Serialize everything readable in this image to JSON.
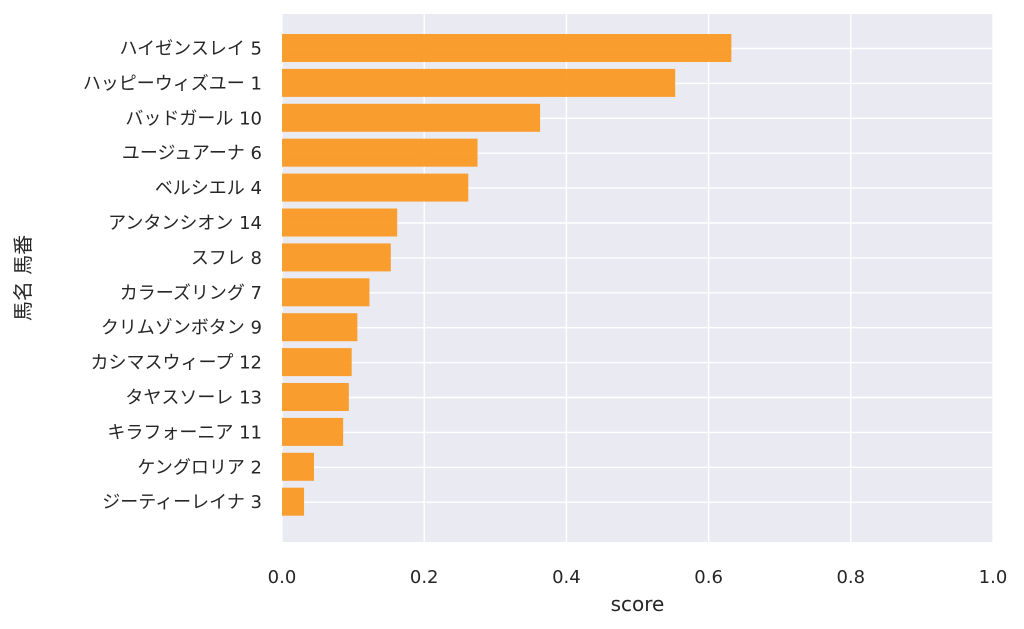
{
  "chart_data": {
    "type": "bar",
    "orientation": "horizontal",
    "categories": [
      "ハイゼンスレイ 5",
      "ハッピーウィズユー 1",
      "バッドガール 10",
      "ユージュアーナ 6",
      "ベルシエル 4",
      "アンタンシオン 14",
      "スフレ 8",
      "カラーズリング 7",
      "クリムゾンボタン 9",
      "カシマスウィープ 12",
      "タヤスソーレ 13",
      "キラフォーニア 11",
      "ケングロリア 2",
      "ジーティーレイナ 3"
    ],
    "values": [
      0.632,
      0.553,
      0.363,
      0.275,
      0.262,
      0.162,
      0.153,
      0.123,
      0.106,
      0.098,
      0.094,
      0.086,
      0.045,
      0.031
    ],
    "xlabel": "score",
    "ylabel": "馬名 馬番",
    "xlim": [
      0,
      1.0
    ],
    "xticks": [
      "0.0",
      "0.2",
      "0.4",
      "0.6",
      "0.8",
      "1.0"
    ],
    "grid": true,
    "colors": {
      "bar": "#fa961e",
      "plot_background": "#eaeaf2",
      "grid": "#ffffff",
      "text": "#262626"
    }
  }
}
